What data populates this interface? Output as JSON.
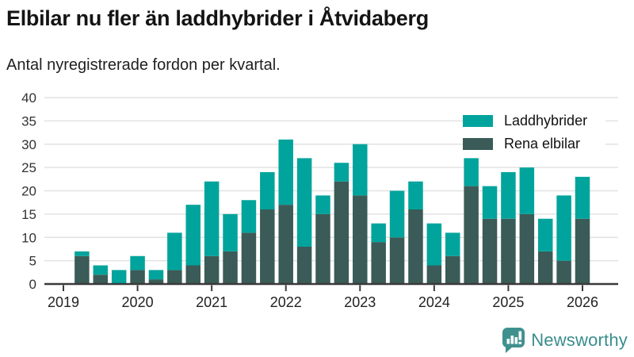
{
  "header": {
    "title": "Elbilar nu fler än laddhybrider i Åtvidaberg",
    "subtitle": "Antal nyregistrerade fordon per kvartal."
  },
  "legend": {
    "items": [
      {
        "label": "Laddhybrider",
        "color": "#00a49c"
      },
      {
        "label": "Rena elbilar",
        "color": "#3a5b57"
      }
    ]
  },
  "footer": {
    "brand": "Newsworthy",
    "brand_color": "#3a8d8d"
  },
  "colors": {
    "laddhybrider": "#00a49c",
    "rena_elbilar": "#3a5b57",
    "grid": "#e2e2e2",
    "axis": "#3a3a3a",
    "tick_text": "#333333"
  },
  "chart_data": {
    "type": "bar",
    "stacked": true,
    "title": "Elbilar nu fler än laddhybrider i Åtvidaberg",
    "subtitle": "Antal nyregistrerade fordon per kvartal.",
    "xlabel": "",
    "ylabel": "",
    "ylim": [
      0,
      40
    ],
    "yticks": [
      0,
      5,
      10,
      15,
      20,
      25,
      30,
      35,
      40
    ],
    "grid": true,
    "legend_position": "top-right",
    "categories": [
      "2019 Q1",
      "2019 Q2",
      "2019 Q3",
      "2019 Q4",
      "2020 Q1",
      "2020 Q2",
      "2020 Q3",
      "2020 Q4",
      "2021 Q1",
      "2021 Q2",
      "2021 Q3",
      "2021 Q4",
      "2022 Q1",
      "2022 Q2",
      "2022 Q3",
      "2022 Q4",
      "2023 Q1",
      "2023 Q2",
      "2023 Q3",
      "2023 Q4",
      "2024 Q1",
      "2024 Q2",
      "2024 Q3",
      "2024 Q4",
      "2025 Q1",
      "2025 Q2",
      "2025 Q3",
      "2025 Q4",
      "2026 Q1"
    ],
    "x_tick_labels": [
      "2019",
      "2020",
      "2021",
      "2022",
      "2023",
      "2024",
      "2025",
      "2026"
    ],
    "series": [
      {
        "name": "Rena elbilar",
        "color": "#3a5b57",
        "values": [
          0,
          6,
          2,
          0,
          3,
          1,
          3,
          4,
          6,
          7,
          11,
          16,
          17,
          8,
          15,
          22,
          19,
          9,
          10,
          16,
          4,
          6,
          21,
          14,
          14,
          15,
          7,
          5,
          14
        ]
      },
      {
        "name": "Laddhybrider",
        "color": "#00a49c",
        "values": [
          0,
          1,
          2,
          3,
          3,
          2,
          8,
          13,
          16,
          8,
          7,
          8,
          14,
          19,
          4,
          4,
          11,
          4,
          10,
          6,
          9,
          5,
          6,
          7,
          10,
          10,
          7,
          14,
          9
        ]
      }
    ]
  }
}
